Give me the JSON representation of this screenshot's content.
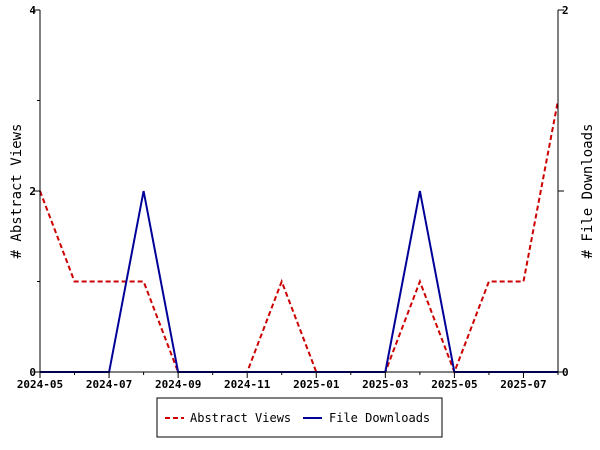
{
  "chart_data": {
    "type": "line",
    "x": [
      "2024-05",
      "2024-06",
      "2024-07",
      "2024-08",
      "2024-09",
      "2024-10",
      "2024-11",
      "2024-12",
      "2025-01",
      "2025-02",
      "2025-03",
      "2025-04",
      "2025-05",
      "2025-06",
      "2025-07",
      "2025-08"
    ],
    "x_tick_labels": [
      "2024-05",
      "2024-07",
      "2024-09",
      "2024-11",
      "2025-01",
      "2025-03",
      "2025-05",
      "2025-07"
    ],
    "series": [
      {
        "name": "Abstract Views",
        "axis": "left",
        "color": "#cc0000",
        "style": "dashed",
        "values": [
          2,
          1,
          1,
          1,
          0,
          0,
          0,
          1,
          0,
          0,
          0,
          1,
          0,
          1,
          1,
          3
        ]
      },
      {
        "name": "File Downloads",
        "axis": "right",
        "color": "#000099",
        "style": "solid",
        "values": [
          0,
          0,
          0,
          1,
          0,
          0,
          0,
          0,
          0,
          0,
          0,
          1,
          0,
          0,
          0,
          0
        ]
      }
    ],
    "ylabel": "# Abstract Views",
    "ylabel_right": "# File Downloads",
    "ylim": [
      0,
      4
    ],
    "ylim_right": [
      0,
      2
    ],
    "y_ticks": [
      "0",
      "2",
      "4"
    ],
    "y_ticks_right": [
      "0",
      "1",
      "2"
    ],
    "grid": false,
    "legend": "bottom-center"
  }
}
